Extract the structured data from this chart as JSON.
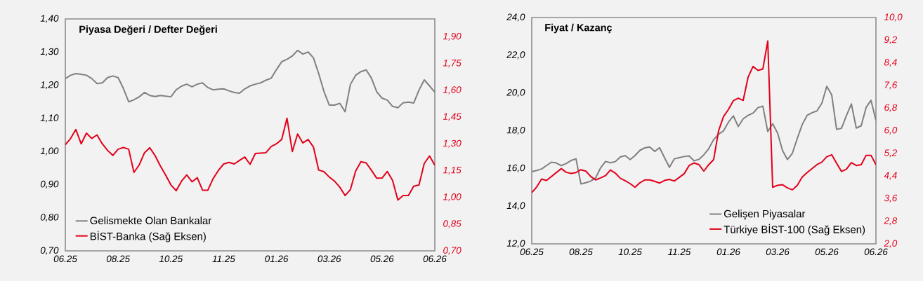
{
  "chart_data": [
    {
      "type": "line",
      "title": "Piyasa Değeri / Defter Değeri",
      "legend": "bottom left",
      "categories": [
        "06.25",
        null,
        null,
        null,
        null,
        null,
        null,
        null,
        null,
        null,
        "08.25",
        null,
        null,
        null,
        null,
        null,
        null,
        null,
        null,
        null,
        "10.25",
        null,
        null,
        null,
        null,
        null,
        null,
        null,
        null,
        null,
        "11.25",
        null,
        null,
        null,
        null,
        null,
        null,
        null,
        null,
        null,
        "01.26",
        null,
        null,
        null,
        null,
        null,
        null,
        null,
        null,
        null,
        "03.26",
        null,
        null,
        null,
        null,
        null,
        null,
        null,
        null,
        null,
        "05.26",
        null,
        null,
        null,
        null,
        null,
        null,
        null,
        null,
        null,
        "06.26"
      ],
      "ylim": [
        0.7,
        1.4
      ],
      "yticks": [
        {
          "value": 0.7,
          "label": "0,70"
        },
        {
          "value": 0.8,
          "label": "0,80"
        },
        {
          "value": 0.9,
          "label": "0,90"
        },
        {
          "value": 1.0,
          "label": "1,00"
        },
        {
          "value": 1.1,
          "label": "1,10"
        },
        {
          "value": 1.2,
          "label": "1,20"
        },
        {
          "value": 1.3,
          "label": "1,30"
        },
        {
          "value": 1.4,
          "label": "1,40"
        }
      ],
      "y2lim": [
        0.7,
        2.0
      ],
      "y2ticks": [
        {
          "value": 0.7,
          "label": "0,70"
        },
        {
          "value": 0.85,
          "label": "0,85"
        },
        {
          "value": 1.0,
          "label": "1,00"
        },
        {
          "value": 1.15,
          "label": "1,15"
        },
        {
          "value": 1.3,
          "label": "1,30"
        },
        {
          "value": 1.45,
          "label": "1,45"
        },
        {
          "value": 1.6,
          "label": "1,60"
        },
        {
          "value": 1.75,
          "label": "1,75"
        },
        {
          "value": 1.9,
          "label": "1,90"
        }
      ],
      "series": [
        {
          "name": "Gelismekte Olan Bankalar",
          "color": "#808080",
          "values": [
            1.22,
            1.23,
            1.235,
            1.233,
            1.23,
            1.22,
            1.205,
            1.207,
            1.223,
            1.228,
            1.223,
            1.19,
            1.15,
            1.156,
            1.165,
            1.178,
            1.169,
            1.166,
            1.169,
            1.167,
            1.165,
            1.186,
            1.197,
            1.203,
            1.195,
            1.203,
            1.207,
            1.193,
            1.186,
            1.188,
            1.189,
            1.183,
            1.178,
            1.176,
            1.189,
            1.198,
            1.203,
            1.207,
            1.215,
            1.221,
            1.247,
            1.271,
            1.278,
            1.288,
            1.305,
            1.294,
            1.3,
            1.283,
            1.235,
            1.181,
            1.14,
            1.14,
            1.145,
            1.12,
            1.202,
            1.23,
            1.241,
            1.246,
            1.221,
            1.18,
            1.161,
            1.155,
            1.136,
            1.132,
            1.147,
            1.149,
            1.146,
            1.185,
            1.216,
            1.198,
            1.179
          ]
        },
        {
          "name": "BİST-Banka (Sağ Eksen)",
          "color": "#E2001A",
          "axis": "y2",
          "values": [
            1.295,
            1.33,
            1.38,
            1.3,
            1.36,
            1.33,
            1.35,
            1.3,
            1.263,
            1.235,
            1.27,
            1.279,
            1.27,
            1.14,
            1.182,
            1.25,
            1.278,
            1.234,
            1.176,
            1.125,
            1.07,
            1.037,
            1.09,
            1.126,
            1.087,
            1.11,
            1.04,
            1.04,
            1.105,
            1.151,
            1.187,
            1.196,
            1.187,
            1.207,
            1.226,
            1.185,
            1.246,
            1.248,
            1.25,
            1.285,
            1.3,
            1.325,
            1.443,
            1.257,
            1.355,
            1.305,
            1.324,
            1.283,
            1.153,
            1.144,
            1.114,
            1.091,
            1.057,
            1.01,
            1.043,
            1.147,
            1.2,
            1.193,
            1.151,
            1.107,
            1.108,
            1.145,
            1.095,
            0.985,
            1.01,
            1.01,
            1.062,
            1.069,
            1.19,
            1.232,
            1.18
          ]
        }
      ]
    },
    {
      "type": "line",
      "title": "Fiyat / Kazanç",
      "legend": "bottom right",
      "categories": [
        "06.25",
        null,
        null,
        null,
        null,
        null,
        null,
        null,
        null,
        null,
        "08.25",
        null,
        null,
        null,
        null,
        null,
        null,
        null,
        null,
        null,
        "10.25",
        null,
        null,
        null,
        null,
        null,
        null,
        null,
        null,
        null,
        "11.25",
        null,
        null,
        null,
        null,
        null,
        null,
        null,
        null,
        null,
        "01.26",
        null,
        null,
        null,
        null,
        null,
        null,
        null,
        null,
        null,
        "03.26",
        null,
        null,
        null,
        null,
        null,
        null,
        null,
        null,
        null,
        "05.26",
        null,
        null,
        null,
        null,
        null,
        null,
        null,
        null,
        null,
        "06.26"
      ],
      "ylim": [
        12,
        24
      ],
      "yticks": [
        {
          "value": 12,
          "label": "12,0"
        },
        {
          "value": 14,
          "label": "14,0"
        },
        {
          "value": 16,
          "label": "16,0"
        },
        {
          "value": 18,
          "label": "18,0"
        },
        {
          "value": 20,
          "label": "20,0"
        },
        {
          "value": 22,
          "label": "22,0"
        },
        {
          "value": 24,
          "label": "24,0"
        }
      ],
      "y2lim": [
        2,
        10
      ],
      "y2ticks": [
        {
          "value": 2,
          "label": "2,0"
        },
        {
          "value": 2.8,
          "label": "2,8"
        },
        {
          "value": 3.6,
          "label": "3,6"
        },
        {
          "value": 4.4,
          "label": "4,4"
        },
        {
          "value": 5.2,
          "label": "5,2"
        },
        {
          "value": 6,
          "label": "6,0"
        },
        {
          "value": 6.8,
          "label": "6,8"
        },
        {
          "value": 7.6,
          "label": "7,6"
        },
        {
          "value": 8.4,
          "label": "8,4"
        },
        {
          "value": 9.2,
          "label": "9,2"
        },
        {
          "value": 10,
          "label": "10,0"
        }
      ],
      "series": [
        {
          "name": "Gelişen Piyasalar",
          "color": "#808080",
          "values": [
            15.83,
            15.89,
            15.97,
            16.15,
            16.33,
            16.29,
            16.15,
            16.26,
            16.42,
            16.51,
            15.18,
            15.24,
            15.33,
            15.5,
            16.03,
            16.37,
            16.3,
            16.36,
            16.61,
            16.68,
            16.47,
            16.68,
            16.96,
            17.09,
            17.14,
            16.9,
            17.1,
            16.57,
            16.06,
            16.51,
            16.57,
            16.63,
            16.66,
            16.4,
            16.48,
            16.72,
            17.05,
            17.53,
            17.82,
            17.99,
            18.45,
            18.79,
            18.22,
            18.63,
            18.81,
            18.93,
            19.22,
            19.3,
            17.95,
            18.37,
            17.87,
            16.95,
            16.47,
            16.8,
            17.59,
            18.32,
            18.81,
            18.95,
            19.05,
            19.46,
            20.35,
            19.9,
            18.07,
            18.13,
            18.8,
            19.42,
            18.14,
            18.26,
            19.23,
            19.61,
            18.55
          ]
        },
        {
          "name": "Türkiye BİST-100 (Sağ Eksen)",
          "color": "#E2001A",
          "axis": "y2",
          "values": [
            3.81,
            4.01,
            4.29,
            4.24,
            4.38,
            4.52,
            4.66,
            4.53,
            4.49,
            4.52,
            4.62,
            4.57,
            4.38,
            4.26,
            4.33,
            4.41,
            4.61,
            4.5,
            4.32,
            4.23,
            4.13,
            4.0,
            4.16,
            4.26,
            4.26,
            4.21,
            4.15,
            4.24,
            4.28,
            4.22,
            4.35,
            4.48,
            4.77,
            4.86,
            4.8,
            4.57,
            4.8,
            4.98,
            6.0,
            6.5,
            6.75,
            7.06,
            7.15,
            7.07,
            7.89,
            8.27,
            8.13,
            8.18,
            9.17,
            4.0,
            4.07,
            4.09,
            3.98,
            3.91,
            4.07,
            4.36,
            4.52,
            4.66,
            4.8,
            4.89,
            5.08,
            5.15,
            4.85,
            4.56,
            4.64,
            4.87,
            4.77,
            4.8,
            5.13,
            5.13,
            4.8
          ]
        }
      ]
    }
  ]
}
